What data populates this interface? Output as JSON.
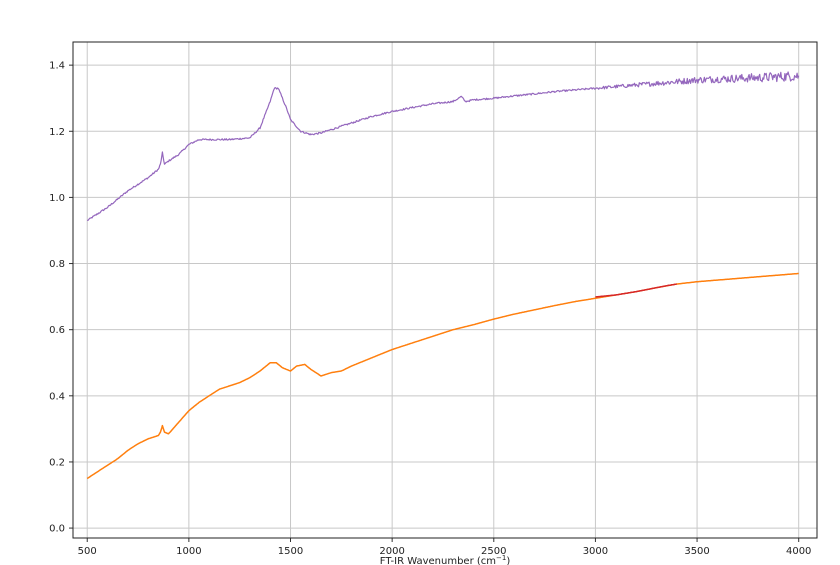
{
  "chart_data": {
    "type": "line",
    "title": "",
    "xlabel": "FT-IR Wavenumber (cm$^{-1}$)",
    "xlabel_text": "FT-IR Wavenumber (cm",
    "xlabel_sup": "−1",
    "xlabel_close": ")",
    "ylabel": "",
    "xlim": [
      430,
      4090
    ],
    "ylim": [
      -0.03,
      1.47
    ],
    "xticks": [
      500,
      1000,
      1500,
      2000,
      2500,
      3000,
      3500,
      4000
    ],
    "yticks": [
      0.0,
      0.2,
      0.4,
      0.6,
      0.8,
      1.0,
      1.2,
      1.4
    ],
    "grid": true,
    "legend": "none",
    "series": [
      {
        "color": "#9467bd",
        "noisy_from": 3000,
        "x": [
          500,
          600,
          700,
          800,
          850,
          860,
          870,
          880,
          900,
          950,
          1000,
          1050,
          1100,
          1200,
          1300,
          1350,
          1400,
          1420,
          1440,
          1460,
          1480,
          1500,
          1550,
          1600,
          1650,
          1700,
          1800,
          1900,
          2000,
          2100,
          2200,
          2300,
          2340,
          2360,
          2400,
          2500,
          2600,
          2700,
          2800,
          2900,
          3000,
          3100,
          3200,
          3300,
          3400,
          3500,
          3600,
          3700,
          3800,
          3900,
          4000
        ],
        "y": [
          0.93,
          0.97,
          1.02,
          1.06,
          1.085,
          1.1,
          1.135,
          1.1,
          1.11,
          1.13,
          1.16,
          1.175,
          1.175,
          1.175,
          1.18,
          1.21,
          1.29,
          1.33,
          1.33,
          1.3,
          1.27,
          1.235,
          1.2,
          1.19,
          1.195,
          1.205,
          1.225,
          1.245,
          1.26,
          1.272,
          1.283,
          1.29,
          1.305,
          1.29,
          1.295,
          1.3,
          1.307,
          1.313,
          1.32,
          1.325,
          1.33,
          1.335,
          1.34,
          1.345,
          1.35,
          1.355,
          1.358,
          1.36,
          1.362,
          1.365,
          1.368
        ]
      },
      {
        "color": "#ff7f0e",
        "x": [
          500,
          550,
          600,
          650,
          700,
          750,
          800,
          850,
          860,
          870,
          880,
          900,
          950,
          1000,
          1050,
          1100,
          1150,
          1200,
          1250,
          1300,
          1350,
          1400,
          1430,
          1460,
          1500,
          1530,
          1570,
          1600,
          1650,
          1700,
          1750,
          1800,
          1900,
          2000,
          2100,
          2200,
          2300,
          2400,
          2500,
          2600,
          2700,
          2800,
          2900,
          3000,
          3100,
          3200,
          3300,
          3400,
          3500,
          3600,
          3700,
          3800,
          3900,
          4000
        ],
        "y": [
          0.15,
          0.17,
          0.19,
          0.21,
          0.235,
          0.255,
          0.27,
          0.28,
          0.29,
          0.31,
          0.29,
          0.285,
          0.32,
          0.355,
          0.38,
          0.4,
          0.42,
          0.43,
          0.44,
          0.455,
          0.475,
          0.5,
          0.5,
          0.485,
          0.475,
          0.49,
          0.495,
          0.48,
          0.46,
          0.47,
          0.475,
          0.49,
          0.515,
          0.54,
          0.56,
          0.58,
          0.6,
          0.615,
          0.632,
          0.647,
          0.66,
          0.673,
          0.685,
          0.695,
          0.705,
          0.715,
          0.727,
          0.738,
          0.745,
          0.75,
          0.755,
          0.76,
          0.765,
          0.77
        ]
      },
      {
        "color": "#d62728",
        "x": [
          3000,
          3050,
          3100,
          3150,
          3200,
          3250,
          3300,
          3350,
          3400
        ],
        "y": [
          0.699,
          0.702,
          0.705,
          0.71,
          0.715,
          0.721,
          0.727,
          0.733,
          0.738
        ]
      }
    ]
  }
}
